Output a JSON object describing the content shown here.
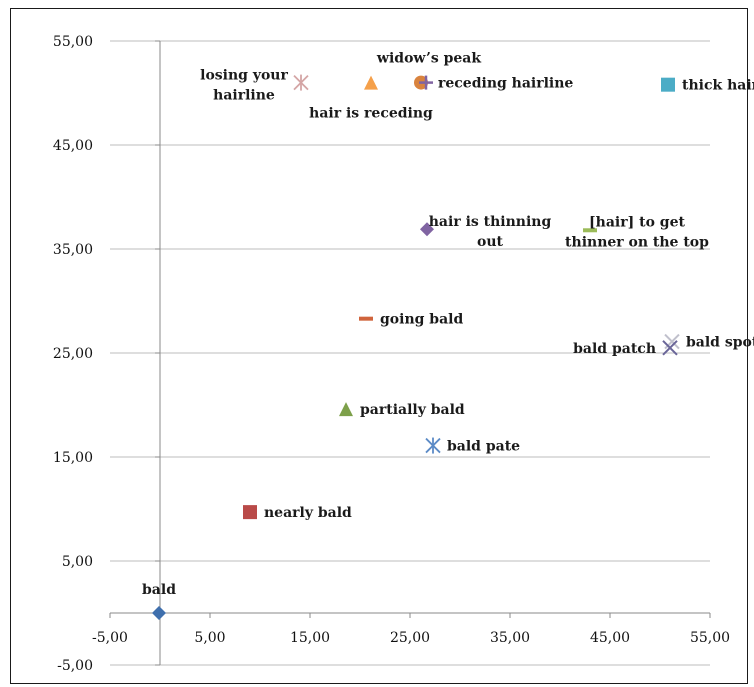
{
  "chart_data": {
    "type": "scatter",
    "xlim": [
      -5,
      55
    ],
    "ylim": [
      -5,
      55
    ],
    "x_ticks": [
      "-5,00",
      "5,00",
      "15,00",
      "25,00",
      "35,00",
      "45,00",
      "55,00"
    ],
    "y_ticks": [
      "55,00",
      "45,00",
      "35,00",
      "25,00",
      "15,00",
      "5,00",
      "-5,00"
    ],
    "grid": "horizontal",
    "legend": "none",
    "points": [
      {
        "label": [
          "bald"
        ],
        "x": -0.1,
        "y": 0.0,
        "marker": "diamond",
        "color": "#3f6fad",
        "label_pos": "above"
      },
      {
        "label": [
          "nearly bald"
        ],
        "x": 9.0,
        "y": 9.7,
        "marker": "square",
        "color": "#b94a48",
        "label_pos": "right"
      },
      {
        "label": [
          "partially bald"
        ],
        "x": 18.6,
        "y": 19.6,
        "marker": "triangle",
        "color": "#7da04a",
        "label_pos": "right"
      },
      {
        "label": [
          "going bald"
        ],
        "x": 20.6,
        "y": 28.3,
        "marker": "dash",
        "color": "#d0643c",
        "label_pos": "right"
      },
      {
        "label": [
          "bald pate"
        ],
        "x": 27.3,
        "y": 16.1,
        "marker": "asterisk",
        "color": "#5b8ac6",
        "label_pos": "right"
      },
      {
        "label": [
          "hair is thinning",
          "out"
        ],
        "x": 26.7,
        "y": 36.9,
        "marker": "diamond",
        "color": "#8064a2",
        "label_pos": "right"
      },
      {
        "label": [
          "[hair] to get",
          "thinner on the top"
        ],
        "x": 43.0,
        "y": 36.8,
        "marker": "dash",
        "color": "#9bbb59",
        "label_pos": "right"
      },
      {
        "label": [
          "bald spot"
        ],
        "x": 51.2,
        "y": 26.1,
        "marker": "x",
        "color": "#c0c0cc",
        "label_pos": "right"
      },
      {
        "label": [
          "bald patch"
        ],
        "x": 51.0,
        "y": 25.5,
        "marker": "x",
        "color": "#6a6699",
        "label_pos": "left"
      },
      {
        "label": [
          "losing your",
          "hairline"
        ],
        "x": 14.1,
        "y": 51.0,
        "marker": "asterisk",
        "color": "#d4a5a5",
        "label_pos": "left"
      },
      {
        "label": [
          "hair is receding"
        ],
        "x": 21.1,
        "y": 51.0,
        "marker": "triangle",
        "color": "#f5a04a",
        "label_pos": "below"
      },
      {
        "label": [
          "widow’s peak"
        ],
        "x": 26.1,
        "y": 51.0,
        "marker": "circle",
        "color": "#d9833e",
        "label_pos": "above"
      },
      {
        "label": [
          "receding hairline"
        ],
        "x": 26.6,
        "y": 51.0,
        "marker": "plus",
        "color": "#8064a2",
        "label_pos": "right"
      },
      {
        "label": [
          "thick hair"
        ],
        "x": 50.8,
        "y": 50.8,
        "marker": "square",
        "color": "#4bacc6",
        "label_pos": "right"
      }
    ]
  }
}
